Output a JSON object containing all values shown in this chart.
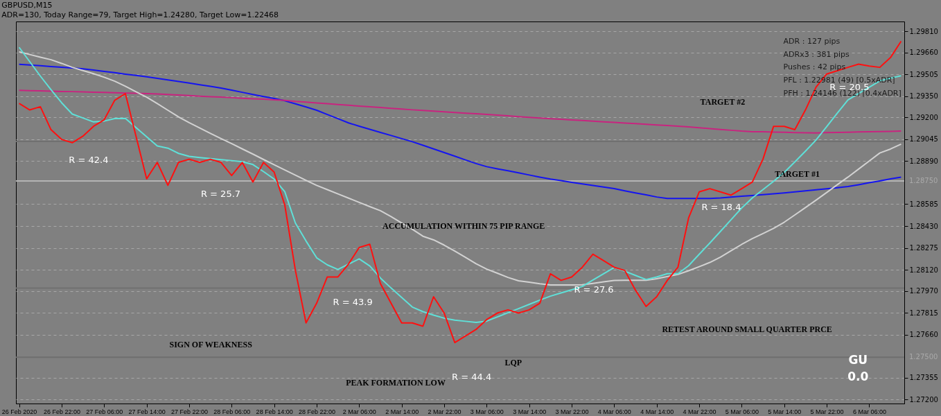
{
  "chart_data": {
    "type": "line",
    "title": "GBPUSD,M15",
    "subtitle": "ADR=130, Today Range=79, Target High=1.24280, Target Low=1.22468",
    "categories": [
      "26 Feb 2020",
      null,
      null,
      null,
      "26 Feb 22:00",
      null,
      null,
      null,
      "27 Feb 06:00",
      null,
      null,
      null,
      "27 Feb 14:00",
      null,
      null,
      null,
      "27 Feb 22:00",
      null,
      null,
      null,
      "28 Feb 06:00",
      null,
      null,
      null,
      "28 Feb 14:00",
      null,
      null,
      null,
      "28 Feb 22:00",
      null,
      null,
      null,
      "2 Mar 06:00",
      null,
      null,
      null,
      "2 Mar 14:00",
      null,
      null,
      null,
      "2 Mar 22:00",
      null,
      null,
      null,
      "3 Mar 06:00",
      null,
      null,
      null,
      "3 Mar 14:00",
      null,
      null,
      null,
      "3 Mar 22:00",
      null,
      null,
      null,
      "4 Mar 06:00",
      null,
      null,
      null,
      "4 Mar 14:00",
      null,
      null,
      null,
      "4 Mar 22:00",
      null,
      null,
      null,
      "5 Mar 06:00",
      null,
      null,
      null,
      "5 Mar 14:00",
      null,
      null,
      null,
      "5 Mar 22:00",
      null,
      null,
      null,
      "6 Mar 06:00",
      null,
      null,
      null
    ],
    "ylim": [
      1.27172,
      1.2988
    ],
    "yticks": [
      {
        "value": 1.272,
        "label": "1.27200"
      },
      {
        "value": 1.27355,
        "label": "1.27355"
      },
      {
        "value": 1.2766,
        "label": "1.27660"
      },
      {
        "value": 1.27815,
        "label": "1.27815"
      },
      {
        "value": 1.2797,
        "label": "1.27970"
      },
      {
        "value": 1.2812,
        "label": "1.28120"
      },
      {
        "value": 1.28275,
        "label": "1.28275"
      },
      {
        "value": 1.2843,
        "label": "1.28430"
      },
      {
        "value": 1.28585,
        "label": "1.28585"
      },
      {
        "value": 1.2889,
        "label": "1.28890"
      },
      {
        "value": 1.29045,
        "label": "1.29045"
      },
      {
        "value": 1.292,
        "label": "1.29200"
      },
      {
        "value": 1.2935,
        "label": "1.29350"
      },
      {
        "value": 1.29505,
        "label": "1.29505"
      },
      {
        "value": 1.2966,
        "label": "1.29660"
      },
      {
        "value": 1.2981,
        "label": "1.29810"
      }
    ],
    "grid": "y",
    "line_style": "solid",
    "ref_lines": [
      {
        "axis": "y",
        "value": 1.2875,
        "label": "1.28750",
        "color": "#b4b4b4"
      },
      {
        "axis": "y",
        "value": 1.275,
        "label": "1.27500",
        "color": "#6e6e6e"
      },
      {
        "axis": "y",
        "value": 1.2903,
        "label": null,
        "color": "#707070"
      },
      {
        "axis": "y",
        "value": 1.2799,
        "label": null,
        "color": "#707070"
      }
    ],
    "series": [
      {
        "color": "#1414f0",
        "values": [
          1.29577,
          1.29572,
          1.29567,
          1.29561,
          1.29556,
          1.29551,
          1.29545,
          1.29536,
          1.29526,
          1.29517,
          1.29507,
          1.29498,
          1.29488,
          1.29477,
          1.29466,
          1.29455,
          1.29444,
          1.29432,
          1.29421,
          1.29408,
          1.29393,
          1.29378,
          1.29363,
          1.29348,
          1.29334,
          1.29318,
          1.29296,
          1.29274,
          1.29251,
          1.29221,
          1.29191,
          1.29161,
          1.29138,
          1.29116,
          1.29094,
          1.29072,
          1.2905,
          1.29028,
          1.29003,
          1.28977,
          1.28951,
          1.28925,
          1.28899,
          1.28873,
          1.28851,
          1.28836,
          1.28822,
          1.28807,
          1.28792,
          1.28777,
          1.28763,
          1.28752,
          1.2874,
          1.28729,
          1.28718,
          1.28707,
          1.28696,
          1.2868,
          1.28665,
          1.28651,
          1.28636,
          1.28626,
          1.28626,
          1.28626,
          1.28626,
          1.28626,
          1.28629,
          1.28635,
          1.28641,
          1.28647,
          1.28653,
          1.28659,
          1.28665,
          1.28672,
          1.2868,
          1.28687,
          1.28694,
          1.28702,
          1.2871,
          1.28723,
          1.28737,
          1.2875,
          1.28764,
          1.28777
        ]
      },
      {
        "color": "#c8247f",
        "values": [
          1.29392,
          1.2939,
          1.29388,
          1.29386,
          1.29384,
          1.29383,
          1.29381,
          1.29379,
          1.29377,
          1.29375,
          1.29373,
          1.29371,
          1.29369,
          1.29366,
          1.29363,
          1.29359,
          1.29355,
          1.29351,
          1.29347,
          1.29344,
          1.2934,
          1.29336,
          1.29332,
          1.29329,
          1.29325,
          1.29321,
          1.29314,
          1.29309,
          1.29303,
          1.29298,
          1.29292,
          1.29286,
          1.29281,
          1.29275,
          1.2927,
          1.29264,
          1.29259,
          1.29254,
          1.2925,
          1.29245,
          1.2924,
          1.29235,
          1.2923,
          1.29226,
          1.29221,
          1.29216,
          1.29211,
          1.29206,
          1.29201,
          1.29196,
          1.29191,
          1.29187,
          1.29182,
          1.29178,
          1.29173,
          1.29169,
          1.29165,
          1.2916,
          1.29156,
          1.29151,
          1.29147,
          1.29143,
          1.29138,
          1.29133,
          1.29127,
          1.29121,
          1.29115,
          1.29109,
          1.29103,
          1.29099,
          1.29098,
          1.29096,
          1.29095,
          1.29093,
          1.29091,
          1.2909,
          1.29092,
          1.29094,
          1.29095,
          1.29097,
          1.29098,
          1.291,
          1.29101,
          1.29103
        ]
      },
      {
        "color": "#d2d2d2",
        "values": [
          1.29665,
          1.29646,
          1.29627,
          1.29609,
          1.29583,
          1.29555,
          1.29532,
          1.2951,
          1.29485,
          1.29457,
          1.29421,
          1.29382,
          1.29344,
          1.29298,
          1.29251,
          1.29204,
          1.29163,
          1.29125,
          1.29087,
          1.2905,
          1.29014,
          1.28977,
          1.2894,
          1.28902,
          1.28865,
          1.28828,
          1.28791,
          1.28754,
          1.28718,
          1.28688,
          1.28658,
          1.28628,
          1.28598,
          1.28568,
          1.28539,
          1.28497,
          1.28452,
          1.28407,
          1.28358,
          1.28332,
          1.28295,
          1.28253,
          1.28208,
          1.28163,
          1.28125,
          1.28096,
          1.28066,
          1.28042,
          1.28032,
          1.28021,
          1.28013,
          1.28013,
          1.28013,
          1.28014,
          1.28024,
          1.28034,
          1.28044,
          1.28045,
          1.28045,
          1.28045,
          1.28057,
          1.28072,
          1.28087,
          1.28113,
          1.28142,
          1.28172,
          1.2821,
          1.28255,
          1.283,
          1.28341,
          1.28377,
          1.28414,
          1.28457,
          1.28509,
          1.28561,
          1.28614,
          1.28668,
          1.28723,
          1.28777,
          1.28834,
          1.28891,
          1.28948,
          1.28976,
          1.29011
        ]
      },
      {
        "color": "#5fe0d8",
        "values": [
          1.29697,
          1.29595,
          1.29493,
          1.29397,
          1.29304,
          1.29224,
          1.29196,
          1.29168,
          1.29174,
          1.29192,
          1.29193,
          1.29128,
          1.29063,
          1.28998,
          1.28982,
          1.28945,
          1.28924,
          1.28916,
          1.28908,
          1.28901,
          1.28894,
          1.28886,
          1.28866,
          1.28816,
          1.28763,
          1.28674,
          1.28451,
          1.28324,
          1.28205,
          1.28155,
          1.28122,
          1.2816,
          1.28197,
          1.28147,
          1.28062,
          1.27991,
          1.27924,
          1.27856,
          1.27823,
          1.27799,
          1.27777,
          1.27763,
          1.27755,
          1.27747,
          1.27756,
          1.27786,
          1.27815,
          1.27845,
          1.27875,
          1.27905,
          1.27933,
          1.27956,
          1.27978,
          1.28002,
          1.28047,
          1.28092,
          1.28136,
          1.2811,
          1.2808,
          1.28051,
          1.28069,
          1.28092,
          1.28092,
          1.28149,
          1.2823,
          1.2831,
          1.28392,
          1.28475,
          1.28558,
          1.28629,
          1.28688,
          1.28747,
          1.2881,
          1.28885,
          1.28961,
          1.2904,
          1.29135,
          1.29231,
          1.29324,
          1.29369,
          1.29414,
          1.29459,
          1.29478,
          1.29495
        ]
      },
      {
        "color": "#ff1010",
        "values": [
          1.29299,
          1.29253,
          1.29276,
          1.29113,
          1.29044,
          1.29021,
          1.29067,
          1.29137,
          1.29183,
          1.29322,
          1.29369,
          1.29067,
          1.28765,
          1.28881,
          1.28719,
          1.28881,
          1.28904,
          1.28881,
          1.28904,
          1.28881,
          1.28788,
          1.28881,
          1.28742,
          1.28881,
          1.28812,
          1.28579,
          1.28115,
          1.27743,
          1.27883,
          1.28069,
          1.28069,
          1.28161,
          1.28278,
          1.28301,
          1.28022,
          1.27883,
          1.27743,
          1.27743,
          1.2772,
          1.27929,
          1.27813,
          1.27604,
          1.27651,
          1.27697,
          1.27767,
          1.27813,
          1.27836,
          1.27813,
          1.27836,
          1.27883,
          1.28092,
          1.28045,
          1.28069,
          1.28138,
          1.28231,
          1.28185,
          1.28138,
          1.28115,
          1.27976,
          1.2786,
          1.27929,
          1.28045,
          1.28138,
          1.28487,
          1.28672,
          1.28695,
          1.28672,
          1.28649,
          1.28695,
          1.28742,
          1.28904,
          1.29137,
          1.29137,
          1.29113,
          1.29253,
          1.29415,
          1.29508,
          1.29531,
          1.29555,
          1.29578,
          1.29564,
          1.29555,
          1.29624,
          1.2974
        ]
      }
    ],
    "annotations": [
      "R = 42.4",
      "R = 25.7",
      "R = 43.9",
      "R = 44.4",
      "R = 27.6",
      "R = 18.4",
      "R = 20.5",
      "SIGN OF WEAKNESS",
      "ACCUMULATION WITHIN 75 PIP RANGE",
      "PEAK FORMATION LOW",
      "LQP",
      "RETEST AROUND SMALL QUARTER PRCE",
      "TARGET #1",
      "TARGET #2",
      "GU",
      "0.0",
      "ADR : 127 pips",
      "ADRx3 : 381 pips",
      "Pushes : 42 pips",
      "PFL : 1.22981 (49) [0.5xADR]",
      "PFH : 1.24146 (122) [0.4xADR]"
    ]
  }
}
